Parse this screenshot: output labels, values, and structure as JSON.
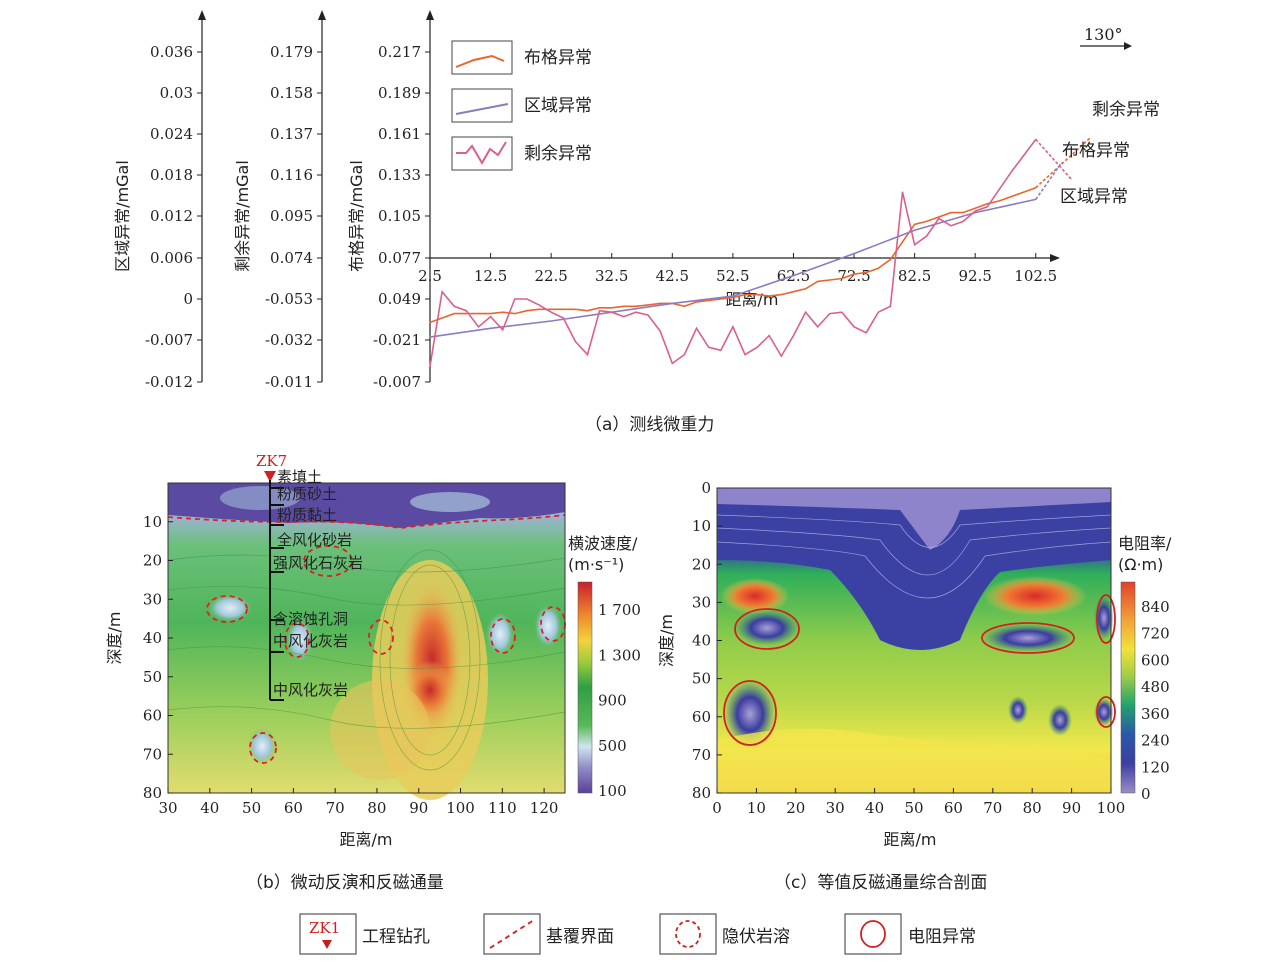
{
  "top": {
    "caption": "（a）测线微重力",
    "direction_label": "130°",
    "axes": [
      {
        "name": "regional",
        "label": "区域异常/mGal",
        "ticks": [
          "0.036",
          "0.03",
          "0.024",
          "0.018",
          "0.012",
          "0.006",
          "0",
          "-0.007",
          "-0.012"
        ]
      },
      {
        "name": "residual",
        "label": "剩余异常/mGal",
        "ticks": [
          "0.179",
          "0.158",
          "0.137",
          "0.116",
          "0.095",
          "0.074",
          "-0.053",
          "-0.032",
          "-0.011"
        ]
      },
      {
        "name": "bouguer",
        "label": "布格异常/mGal",
        "ticks": [
          "0.217",
          "0.189",
          "0.161",
          "0.133",
          "0.105",
          "0.077",
          "0.049",
          "-0.021",
          "-0.007"
        ]
      }
    ],
    "x_ticks": [
      "2.5",
      "12.5",
      "22.5",
      "32.5",
      "42.5",
      "52.5",
      "62.5",
      "72.5",
      "82.5",
      "92.5",
      "102.5"
    ],
    "x_label": "距离/m",
    "legend": [
      {
        "name": "布格异常",
        "color": "#e8652e"
      },
      {
        "name": "区域异常",
        "color": "#8c7bc0"
      },
      {
        "name": "剩余异常",
        "color": "#d9608e"
      }
    ],
    "end_labels": {
      "residual": "剩余异常",
      "bouguer": "布格异常",
      "regional": "区域异常"
    }
  },
  "chart_data": [
    {
      "type": "line",
      "title": "",
      "xlabel": "距离/m",
      "ylabel": "布格异常/mGal",
      "xlim": [
        2.5,
        106.5
      ],
      "ylim": [
        -0.007,
        0.217
      ],
      "x_ticks": [
        2.5,
        12.5,
        22.5,
        32.5,
        42.5,
        52.5,
        62.5,
        72.5,
        82.5,
        92.5,
        102.5
      ],
      "series": [
        {
          "name": "布格异常",
          "color": "#e8652e",
          "x": [
            2.5,
            4.5,
            6.5,
            8.5,
            10.5,
            12.5,
            14.5,
            16.5,
            18.5,
            20.5,
            22.5,
            24.5,
            26.5,
            28.5,
            30.5,
            32.5,
            34.5,
            36.5,
            38.5,
            40.5,
            42.5,
            44.5,
            46.5,
            48.5,
            50.5,
            52.5,
            54.5,
            56.5,
            58.5,
            60.5,
            62.5,
            64.5,
            66.5,
            68.5,
            70.5,
            72.5,
            74.5,
            76.5,
            78.5,
            80.5,
            82.5,
            84.5,
            86.5,
            88.5,
            90.5,
            92.5,
            94.5,
            96.5,
            98.5,
            100.5,
            102.5
          ],
          "y": [
            0.033,
            0.036,
            0.039,
            0.039,
            0.039,
            0.039,
            0.04,
            0.039,
            0.041,
            0.042,
            0.042,
            0.042,
            0.042,
            0.041,
            0.043,
            0.043,
            0.044,
            0.044,
            0.045,
            0.046,
            0.046,
            0.044,
            0.047,
            0.048,
            0.049,
            0.05,
            0.052,
            0.052,
            0.051,
            0.052,
            0.054,
            0.056,
            0.061,
            0.062,
            0.063,
            0.066,
            0.067,
            0.07,
            0.076,
            0.088,
            0.1,
            0.102,
            0.105,
            0.108,
            0.108,
            0.111,
            0.114,
            0.116,
            0.119,
            0.122,
            0.125
          ]
        },
        {
          "name": "区域异常",
          "color": "#8c7bc0",
          "x": [
            2.5,
            12.5,
            22.5,
            32.5,
            42.5,
            52.5,
            62.5,
            72.5,
            82.5,
            92.5,
            102.5
          ],
          "y": [
            0.023,
            0.029,
            0.034,
            0.04,
            0.046,
            0.051,
            0.065,
            0.08,
            0.096,
            0.108,
            0.117
          ]
        },
        {
          "name": "剩余异常",
          "color": "#d9608e",
          "x": [
            2.5,
            4.5,
            6.5,
            8.5,
            10.5,
            12.5,
            14.5,
            16.5,
            18.5,
            20.5,
            22.5,
            24.5,
            26.5,
            28.5,
            30.5,
            32.5,
            34.5,
            36.5,
            38.5,
            40.5,
            42.5,
            44.5,
            46.5,
            48.5,
            50.5,
            52.5,
            54.5,
            56.5,
            58.5,
            60.5,
            62.5,
            64.5,
            66.5,
            68.5,
            70.5,
            72.5,
            74.5,
            76.5,
            78.5,
            80.5,
            82.5,
            84.5,
            86.5,
            88.5,
            90.5,
            92.5,
            94.5,
            96.5,
            98.5,
            100.5,
            102.5
          ],
          "y": [
            0.003,
            0.054,
            0.044,
            0.041,
            0.03,
            0.037,
            0.028,
            0.049,
            0.049,
            0.045,
            0.04,
            0.036,
            0.02,
            0.011,
            0.041,
            0.04,
            0.037,
            0.04,
            0.038,
            0.027,
            0.005,
            0.011,
            0.029,
            0.016,
            0.014,
            0.03,
            0.011,
            0.016,
            0.024,
            0.01,
            0.024,
            0.04,
            0.03,
            0.039,
            0.04,
            0.03,
            0.026,
            0.04,
            0.044,
            0.122,
            0.086,
            0.092,
            0.104,
            0.099,
            0.102,
            0.109,
            0.112,
            0.124,
            0.136,
            0.147,
            0.158
          ]
        }
      ]
    },
    {
      "type": "heatmap",
      "title": "",
      "xlabel": "距离/m",
      "ylabel": "深度/m",
      "xlim": [
        30,
        125
      ],
      "ylim": [
        0,
        80
      ],
      "x_ticks": [
        30,
        40,
        50,
        60,
        70,
        80,
        90,
        100,
        110,
        120
      ],
      "y_ticks": [
        10,
        20,
        30,
        40,
        50,
        60,
        70,
        80
      ],
      "colorbar_label": "横波速度/(m·s-1)",
      "colorbar_ticks": [
        "1 700",
        "1 300",
        "900",
        "500",
        "100"
      ]
    },
    {
      "type": "heatmap",
      "title": "",
      "xlabel": "距离/m",
      "ylabel": "深度/m",
      "xlim": [
        0,
        100
      ],
      "ylim": [
        0,
        80
      ],
      "x_ticks": [
        0,
        10,
        20,
        30,
        40,
        50,
        60,
        70,
        80,
        90,
        100
      ],
      "y_ticks": [
        0,
        10,
        20,
        30,
        40,
        50,
        60,
        70,
        80
      ],
      "colorbar_label": "电阻率/(Ω·m)",
      "colorbar_ticks": [
        "840",
        "720",
        "600",
        "480",
        "360",
        "240",
        "120",
        "0"
      ]
    }
  ],
  "b": {
    "caption": "（b）微动反演和反磁通量",
    "borehole": "ZK7",
    "layers": [
      "素填土",
      "粉质砂土",
      "粉质黏土",
      "全风化砂岩",
      "强风化石灰岩",
      "含溶蚀孔洞",
      "中风化灰岩",
      "中风化灰岩"
    ],
    "cbar_unit_line1": "横波速度/",
    "cbar_unit_line2": "(m·s⁻¹)"
  },
  "c": {
    "caption": "（c）等值反磁通量综合剖面",
    "cbar_unit_line1": "电阻率/",
    "cbar_unit_line2": "(Ω·m)"
  },
  "bottom_legend": [
    {
      "name": "工程钻孔",
      "icon_text": "ZK1"
    },
    {
      "name": "基覆界面"
    },
    {
      "name": "隐伏岩溶"
    },
    {
      "name": "电阻异常"
    }
  ]
}
